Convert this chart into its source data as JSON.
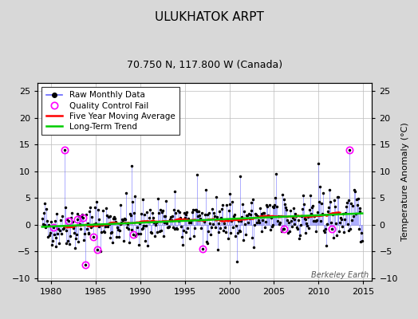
{
  "title": "ULUKHATOK ARPT",
  "subtitle": "70.750 N, 117.800 W (Canada)",
  "ylabel_right": "Temperature Anomaly (°C)",
  "watermark": "Berkeley Earth",
  "xlim": [
    1978.5,
    2016.0
  ],
  "ylim": [
    -10.5,
    26.5
  ],
  "yticks": [
    -10,
    -5,
    0,
    5,
    10,
    15,
    20,
    25
  ],
  "xticks": [
    1980,
    1985,
    1990,
    1995,
    2000,
    2005,
    2010,
    2015
  ],
  "bg_color": "#d8d8d8",
  "plot_bg_color": "#ffffff",
  "raw_line_color": "#6666ff",
  "raw_dot_color": "#000000",
  "qc_fail_color": "#ff00ff",
  "moving_avg_color": "#ff0000",
  "trend_color": "#00cc00",
  "title_fontsize": 11,
  "subtitle_fontsize": 9,
  "tick_fontsize": 8,
  "legend_fontsize": 7.5,
  "ylabel_fontsize": 8,
  "seed": 42
}
